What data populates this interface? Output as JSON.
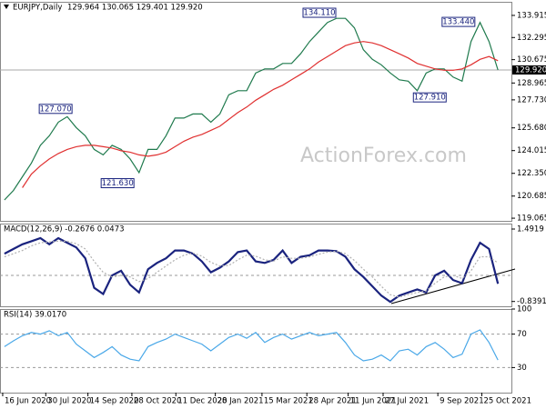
{
  "header": {
    "symbol": "EURJPY,Daily",
    "ohlc": "129.964 130.065 129.401 129.920"
  },
  "watermark": "ActionForex.com",
  "chart_data": [
    {
      "type": "line",
      "xlim": [
        -0.5,
        56.5
      ],
      "ylim": [
        118.87,
        134.91
      ],
      "yticks": [
        133.915,
        132.295,
        130.675,
        128.965,
        {
          "value": 127.73,
          "label": "127.730"
        },
        {
          "value": 125.68,
          "label": "125.680"
        },
        124.015,
        {
          "value": 122.35,
          "label": "122.350"
        },
        120.685,
        119.065
      ],
      "current_price": {
        "value": 129.92,
        "label": "129.920"
      },
      "series": [
        {
          "name": "EURJPY",
          "color": "#1f7a4d",
          "values": [
            120.4,
            121.1,
            122.1,
            123.1,
            124.4,
            125.1,
            126.1,
            126.5,
            125.7,
            125.1,
            124.1,
            123.7,
            124.4,
            124.1,
            123.4,
            122.4,
            124.1,
            124.1,
            125.1,
            126.4,
            126.4,
            126.7,
            126.7,
            126.1,
            126.7,
            128.1,
            128.4,
            128.4,
            129.7,
            130.0,
            130.0,
            130.4,
            130.4,
            131.1,
            132.0,
            132.7,
            133.4,
            133.7,
            133.7,
            133.0,
            131.4,
            130.7,
            130.3,
            129.7,
            129.2,
            129.1,
            128.4,
            129.7,
            130.0,
            130.0,
            129.4,
            129.1,
            132.0,
            133.4,
            132.0,
            129.92
          ]
        },
        {
          "name": "MA",
          "color": "#e03030",
          "values": [
            null,
            null,
            121.3,
            122.3,
            122.9,
            123.4,
            123.8,
            124.1,
            124.3,
            124.4,
            124.4,
            124.3,
            124.2,
            124.0,
            123.9,
            123.7,
            123.6,
            123.7,
            123.9,
            124.3,
            124.7,
            125.0,
            125.2,
            125.5,
            125.8,
            126.3,
            126.8,
            127.2,
            127.7,
            128.1,
            128.5,
            128.8,
            129.2,
            129.6,
            130.0,
            130.5,
            130.9,
            131.3,
            131.7,
            131.9,
            132.0,
            131.9,
            131.7,
            131.4,
            131.1,
            130.8,
            130.4,
            130.2,
            130.0,
            129.9,
            129.9,
            130.0,
            130.3,
            130.7,
            130.9,
            130.6
          ]
        }
      ],
      "annotations": [
        {
          "x": 5.7,
          "value": 127.07,
          "label": "127.070"
        },
        {
          "x": 12.6,
          "value": 121.63,
          "label": "121.630"
        },
        {
          "x": 35.1,
          "value": 134.11,
          "label": "134.110"
        },
        {
          "x": 50.6,
          "value": 133.44,
          "label": "133.440"
        },
        {
          "x": 47.4,
          "value": 127.91,
          "label": "127.910"
        }
      ]
    },
    {
      "type": "line",
      "label": "MACD(12,26,9) -0.2676 0.0473",
      "xlim": [
        -0.5,
        56.5
      ],
      "ylim": [
        -0.994,
        1.667
      ],
      "yticks": [
        1.4919,
        -0.8391
      ],
      "ref_lines": [
        0
      ],
      "series": [
        {
          "name": "MACD",
          "color": "#1a237e",
          "values": [
            0.7,
            0.85,
            1.0,
            1.1,
            1.2,
            1.0,
            1.2,
            1.05,
            0.9,
            0.55,
            -0.4,
            -0.6,
            0.0,
            0.15,
            -0.3,
            -0.55,
            0.2,
            0.4,
            0.55,
            0.8,
            0.8,
            0.7,
            0.45,
            0.1,
            0.25,
            0.45,
            0.75,
            0.8,
            0.45,
            0.4,
            0.5,
            0.8,
            0.4,
            0.6,
            0.65,
            0.8,
            0.8,
            0.78,
            0.6,
            0.2,
            -0.05,
            -0.35,
            -0.65,
            -0.85,
            -0.65,
            -0.55,
            -0.45,
            -0.55,
            0.0,
            0.15,
            -0.15,
            -0.25,
            0.5,
            1.05,
            0.85,
            -0.2676
          ]
        },
        {
          "name": "Signal",
          "color": "#b0b0b0",
          "values": [
            0.6,
            0.7,
            0.8,
            0.95,
            1.05,
            1.08,
            1.1,
            1.1,
            1.02,
            0.85,
            0.45,
            0.1,
            -0.05,
            0.0,
            -0.05,
            -0.2,
            -0.1,
            0.1,
            0.3,
            0.5,
            0.65,
            0.72,
            0.62,
            0.42,
            0.3,
            0.32,
            0.5,
            0.65,
            0.62,
            0.5,
            0.46,
            0.6,
            0.55,
            0.55,
            0.6,
            0.68,
            0.75,
            0.78,
            0.7,
            0.48,
            0.2,
            -0.05,
            -0.35,
            -0.62,
            -0.7,
            -0.62,
            -0.55,
            -0.5,
            -0.25,
            -0.05,
            0.0,
            -0.1,
            0.15,
            0.6,
            0.6,
            0.4
          ]
        }
      ]
    },
    {
      "type": "line",
      "label": "RSI(14) 39.0170",
      "xlim": [
        -0.5,
        56.5
      ],
      "ylim": [
        0,
        100
      ],
      "yticks": [
        100,
        70,
        30
      ],
      "ref_lines": [
        70,
        30
      ],
      "xticks": [
        {
          "value": -0.2,
          "label": "16 Jun 2020"
        },
        {
          "value": 4.6,
          "label": "30 Jul 2020"
        },
        {
          "value": 9.3,
          "label": "14 Sep 2020"
        },
        {
          "value": 14.2,
          "label": "28 Oct 2020"
        },
        {
          "value": 19.1,
          "label": "11 Dec 2020"
        },
        {
          "value": 23.5,
          "label": "28 Jan 2021"
        },
        {
          "value": 28.7,
          "label": "15 Mar 2021"
        },
        {
          "value": 33.7,
          "label": "28 Apr 2021"
        },
        {
          "value": 38.3,
          "label": "11 Jun 2021"
        },
        {
          "value": 42.2,
          "label": "27 Jul 2021"
        },
        {
          "value": 48.3,
          "label": "9 Sep 2021"
        },
        {
          "value": 53.2,
          "label": "25 Oct 2021"
        }
      ],
      "series": [
        {
          "name": "RSI",
          "color": "#4aa8e8",
          "values": [
            55,
            62,
            68,
            72,
            70,
            74,
            68,
            72,
            58,
            50,
            42,
            48,
            55,
            45,
            40,
            38,
            55,
            60,
            64,
            70,
            66,
            62,
            58,
            50,
            58,
            66,
            70,
            65,
            72,
            60,
            66,
            70,
            64,
            68,
            72,
            68,
            70,
            72,
            60,
            45,
            38,
            40,
            45,
            38,
            50,
            52,
            45,
            55,
            60,
            52,
            42,
            46,
            70,
            75,
            60,
            39.017
          ]
        }
      ]
    }
  ]
}
